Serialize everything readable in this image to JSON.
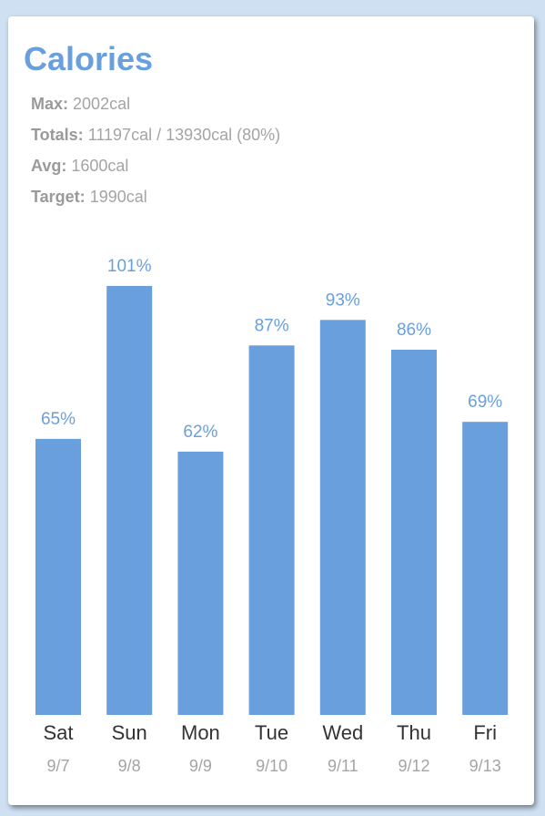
{
  "header": {
    "title": "Calories"
  },
  "stats": {
    "max_label": "Max:",
    "max_value": "2002cal",
    "totals_label": "Totals:",
    "totals_value": "11197cal / 13930cal (80%)",
    "avg_label": "Avg:",
    "avg_value": "1600cal",
    "target_label": "Target:",
    "target_value": "1990cal"
  },
  "colors": {
    "accent": "#6a9fdd",
    "background": "#cfe0f3"
  },
  "chart_data": {
    "type": "bar",
    "categories": [
      "Sat",
      "Sun",
      "Mon",
      "Tue",
      "Wed",
      "Thu",
      "Fri"
    ],
    "dates": [
      "9/7",
      "9/8",
      "9/9",
      "9/10",
      "9/11",
      "9/12",
      "9/13"
    ],
    "values": [
      65,
      101,
      62,
      87,
      93,
      86,
      69
    ],
    "value_labels": [
      "65%",
      "101%",
      "62%",
      "87%",
      "93%",
      "86%",
      "69%"
    ],
    "title": "",
    "xlabel": "",
    "ylabel": "",
    "ylim": [
      0,
      101
    ],
    "grid": false,
    "legend": "none"
  }
}
